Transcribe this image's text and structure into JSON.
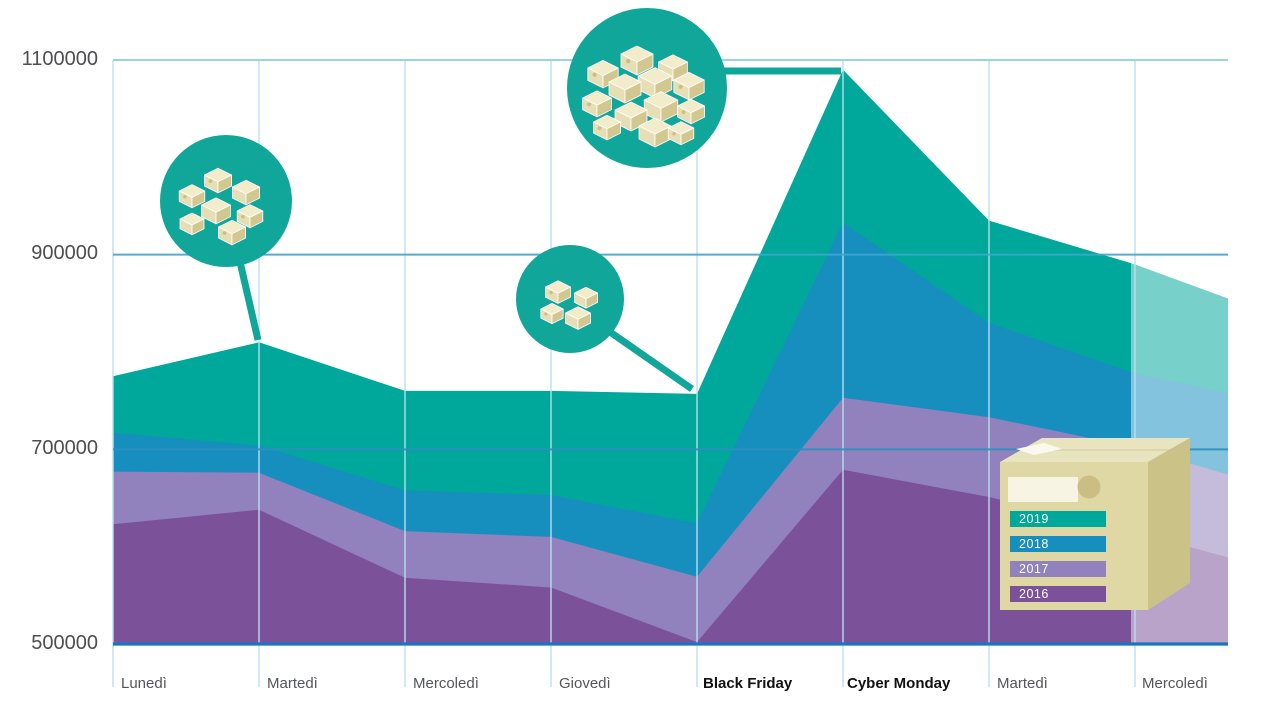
{
  "chart_data": {
    "type": "area",
    "layering": "overlapping-not-stacked",
    "categories": [
      "Lunedì",
      "Martedì",
      "Mercoledì",
      "Giovedì",
      "Black Friday",
      "Cyber Monday",
      "Martedì",
      "Mercoledì"
    ],
    "bold_categories": [
      "Black Friday",
      "Cyber Monday"
    ],
    "y_ticks": [
      "1100000",
      "900000",
      "700000",
      "500000"
    ],
    "y_tick_values": [
      1100000,
      900000,
      700000,
      500000
    ],
    "ylim": [
      500000,
      1100000
    ],
    "grid": "on",
    "series": [
      {
        "name": "2019",
        "color": "#00A79B",
        "values": [
          775000,
          810000,
          760000,
          760000,
          757000,
          1090000,
          935000,
          890000
        ],
        "edge_value": 855000
      },
      {
        "name": "2018",
        "color": "#168FBF",
        "values": [
          717000,
          704000,
          658000,
          653000,
          624000,
          933000,
          830000,
          778000
        ],
        "edge_value": 758000
      },
      {
        "name": "2017",
        "color": "#9181BC",
        "values": [
          677000,
          676000,
          616000,
          610000,
          569000,
          753000,
          733000,
          702000
        ],
        "edge_value": 674000
      },
      {
        "name": "2016",
        "color": "#7B5199",
        "values": [
          623000,
          638000,
          568000,
          558000,
          502000,
          679000,
          651000,
          615000
        ],
        "edge_value": 589000
      }
    ],
    "faded_region": {
      "from_category_index": 7,
      "note": "rightmost segment shown semi-transparent"
    },
    "legend": {
      "position": "bottom-right",
      "items": [
        "2019",
        "2018",
        "2017",
        "2016"
      ]
    },
    "annotations": [
      {
        "icon": "packages-pile-large-icon",
        "points_to": "Cyber Monday peak (2019)"
      },
      {
        "icon": "packages-pile-medium-icon",
        "points_to": "Martedì peak (2019)"
      },
      {
        "icon": "packages-pile-small-icon",
        "points_to": "Black Friday dip (2019)"
      }
    ]
  },
  "colors": {
    "series": {
      "y2019": "#00A79B",
      "y2018": "#168FBF",
      "y2017": "#9181BC",
      "y2016": "#7B5199"
    },
    "axis_baseline": "#1B75BC",
    "grid_vertical": "#BBDFF2",
    "grid_top_line": "#9AD5DF",
    "grid_900k_line": "#3FA5CE",
    "grid_700k_line": "#2E8FC0",
    "callout_circle": "#10A79A",
    "box_top": "#F2ECCB",
    "box_front": "#E6DFB5",
    "box_side": "#D2C78F",
    "box_detail": "#CBBE84",
    "legend_box_front": "#DFD8A4",
    "legend_box_side": "#CBC287",
    "legend_box_top": "#E9E4C0",
    "legend_label_white": "#F7F4E4",
    "tick_text": "#4D4E50",
    "category_text": "#54565A"
  }
}
